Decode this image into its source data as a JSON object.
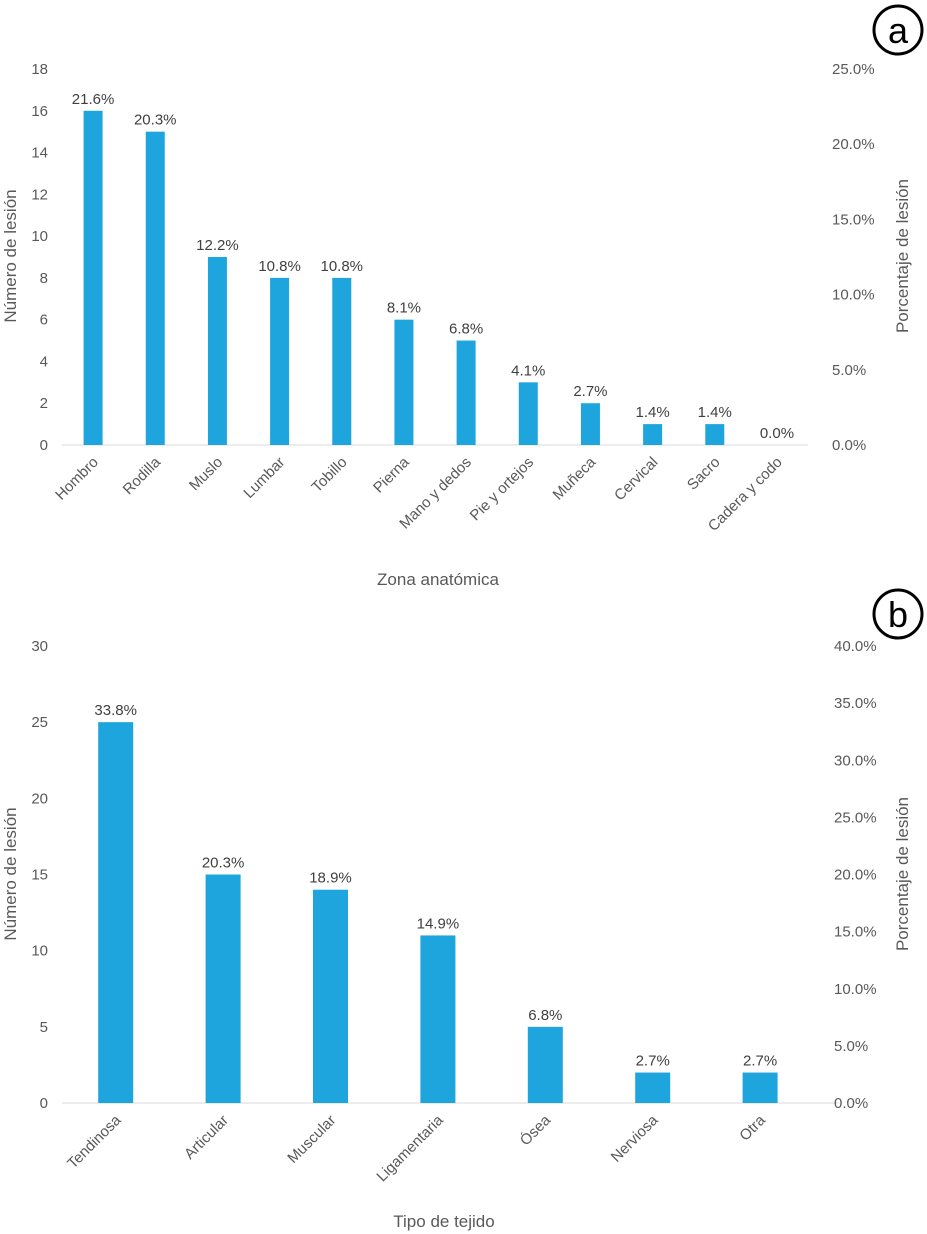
{
  "chart_data": [
    {
      "type": "bar",
      "panel_label": "a",
      "categories": [
        "Hombro",
        "Rodilla",
        "Muslo",
        "Lumbar",
        "Tobillo",
        "Pierna",
        "Mano y dedos",
        "Pie y ortejos",
        "Muñeca",
        "Cervical",
        "Sacro",
        "Cadera y codo"
      ],
      "values": [
        16,
        15,
        9,
        8,
        8,
        6,
        5,
        3,
        2,
        1,
        1,
        0
      ],
      "data_labels": [
        "21.6%",
        "20.3%",
        "12.2%",
        "10.8%",
        "10.8%",
        "8.1%",
        "6.8%",
        "4.1%",
        "2.7%",
        "1.4%",
        "1.4%",
        "0.0%"
      ],
      "xlabel": "Zona anatómica",
      "ylabel": "Número de lesión",
      "y2label": "Porcentaje de lesión",
      "ylim": [
        0,
        18
      ],
      "yticks": [
        "0",
        "2",
        "4",
        "6",
        "8",
        "10",
        "12",
        "14",
        "16",
        "18"
      ],
      "y2ticks": [
        "0.0%",
        "5.0%",
        "10.0%",
        "15.0%",
        "20.0%",
        "25.0%"
      ],
      "grid": false,
      "color": "#1ea5dd"
    },
    {
      "type": "bar",
      "panel_label": "b",
      "categories": [
        "Tendinosa",
        "Articular",
        "Muscular",
        "Ligamentaria",
        "Ósea",
        "Nerviosa",
        "Otra"
      ],
      "values": [
        25,
        15,
        14,
        11,
        5,
        2,
        2
      ],
      "data_labels": [
        "33.8%",
        "20.3%",
        "18.9%",
        "14.9%",
        "6.8%",
        "2.7%",
        "2.7%"
      ],
      "xlabel": "Tipo de tejido",
      "ylabel": "Número de lesión",
      "y2label": "Porcentaje de lesión",
      "ylim": [
        0,
        30
      ],
      "yticks": [
        "0",
        "5",
        "10",
        "15",
        "20",
        "25",
        "30"
      ],
      "y2ticks": [
        "0.0%",
        "5.0%",
        "10.0%",
        "15.0%",
        "20.0%",
        "25.0%",
        "30.0%",
        "35.0%",
        "40.0%"
      ],
      "grid": false,
      "color": "#1ea5dd"
    }
  ]
}
